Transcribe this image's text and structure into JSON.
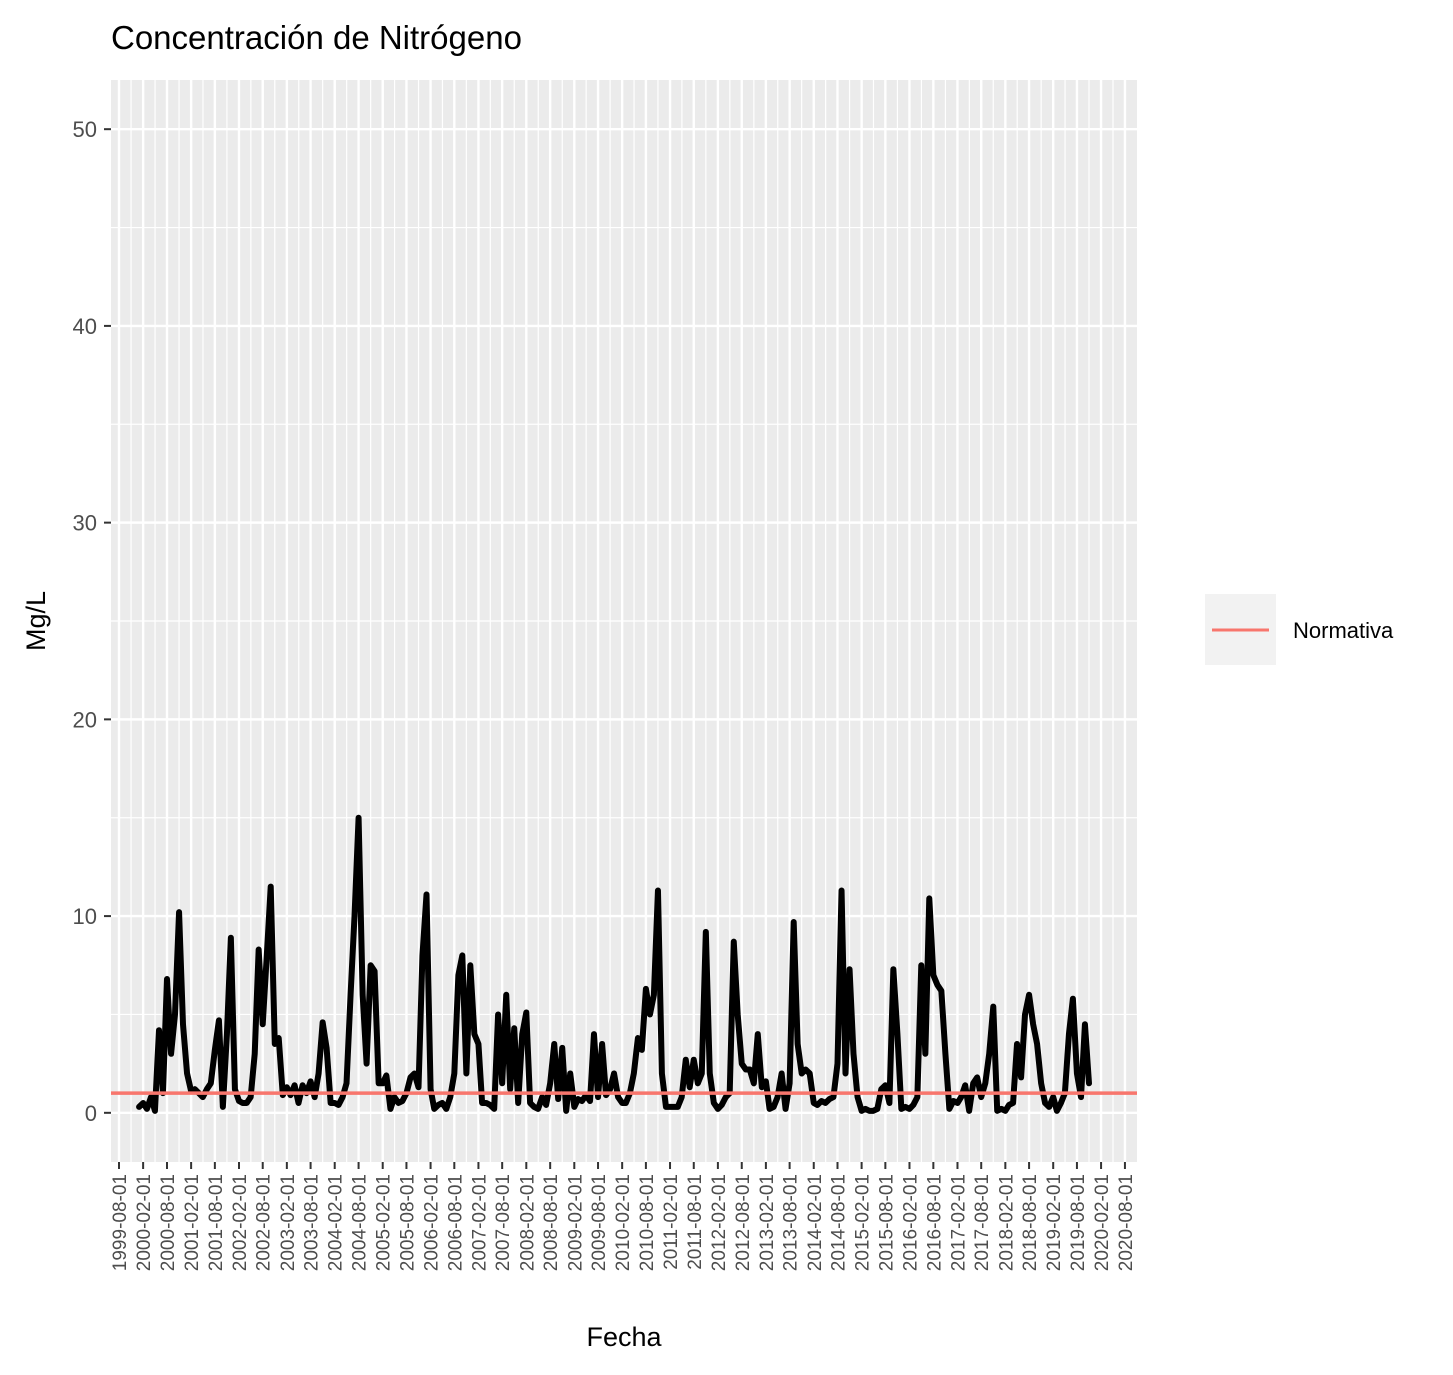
{
  "chart_data": {
    "type": "line",
    "title": "Concentración de Nitrógeno",
    "xlabel": "Fecha",
    "ylabel": "Mg/L",
    "ylim": [
      -2.5,
      52.5
    ],
    "xlim": [
      "1999-06-01",
      "2020-11-01"
    ],
    "yticks": [
      0,
      10,
      20,
      30,
      40,
      50
    ],
    "ytick_labels": [
      "0",
      "10",
      "20",
      "30",
      "40",
      "50"
    ],
    "xtick_labels": [
      "1999-08-01",
      "2000-02-01",
      "2000-08-01",
      "2001-02-01",
      "2001-08-01",
      "2002-02-01",
      "2002-08-01",
      "2003-02-01",
      "2003-08-01",
      "2004-02-01",
      "2004-08-01",
      "2005-02-01",
      "2005-08-01",
      "2006-02-01",
      "2006-08-01",
      "2007-02-01",
      "2007-08-01",
      "2008-02-01",
      "2008-08-01",
      "2009-02-01",
      "2009-08-01",
      "2010-02-01",
      "2010-08-01",
      "2011-02-01",
      "2011-08-01",
      "2012-02-01",
      "2012-08-01",
      "2013-02-01",
      "2013-08-01",
      "2014-02-01",
      "2014-08-01",
      "2015-02-01",
      "2015-08-01",
      "2016-02-01",
      "2016-08-01",
      "2017-02-01",
      "2017-08-01",
      "2018-02-01",
      "2018-08-01",
      "2019-02-01",
      "2019-08-01",
      "2020-02-01",
      "2020-08-01"
    ],
    "grid": true,
    "background": "#ebebeb",
    "legend_position": "right",
    "series": [
      {
        "color": "#000000",
        "points": [
          [
            "2000-01-01",
            0.3
          ],
          [
            "2000-02-01",
            0.5
          ],
          [
            "2000-03-01",
            0.2
          ],
          [
            "2000-04-01",
            0.8
          ],
          [
            "2000-05-01",
            0.1
          ],
          [
            "2000-06-01",
            4.2
          ],
          [
            "2000-07-01",
            1.0
          ],
          [
            "2000-08-01",
            6.8
          ],
          [
            "2000-09-01",
            3.0
          ],
          [
            "2000-10-01",
            5.0
          ],
          [
            "2000-11-01",
            10.2
          ],
          [
            "2000-12-01",
            4.5
          ],
          [
            "2001-01-01",
            2.0
          ],
          [
            "2001-02-01",
            1.1
          ],
          [
            "2001-03-01",
            1.2
          ],
          [
            "2001-04-01",
            1.0
          ],
          [
            "2001-05-01",
            0.8
          ],
          [
            "2001-06-01",
            1.2
          ],
          [
            "2001-07-01",
            1.5
          ],
          [
            "2001-08-01",
            3.2
          ],
          [
            "2001-09-01",
            4.7
          ],
          [
            "2001-10-01",
            0.3
          ],
          [
            "2001-11-01",
            4.0
          ],
          [
            "2001-12-01",
            8.9
          ],
          [
            "2002-01-01",
            1.2
          ],
          [
            "2002-02-01",
            0.6
          ],
          [
            "2002-03-01",
            0.5
          ],
          [
            "2002-04-01",
            0.5
          ],
          [
            "2002-05-01",
            0.8
          ],
          [
            "2002-06-01",
            3.0
          ],
          [
            "2002-07-01",
            8.3
          ],
          [
            "2002-08-01",
            4.5
          ],
          [
            "2002-09-01",
            8.0
          ],
          [
            "2002-10-01",
            11.5
          ],
          [
            "2002-11-01",
            3.5
          ],
          [
            "2002-12-01",
            3.8
          ],
          [
            "2003-01-01",
            0.9
          ],
          [
            "2003-02-01",
            1.3
          ],
          [
            "2003-03-01",
            0.9
          ],
          [
            "2003-04-01",
            1.4
          ],
          [
            "2003-05-01",
            0.5
          ],
          [
            "2003-06-01",
            1.4
          ],
          [
            "2003-07-01",
            1.0
          ],
          [
            "2003-08-01",
            1.6
          ],
          [
            "2003-09-01",
            0.8
          ],
          [
            "2003-10-01",
            2.0
          ],
          [
            "2003-11-01",
            4.6
          ],
          [
            "2003-12-01",
            3.3
          ],
          [
            "2004-01-01",
            0.5
          ],
          [
            "2004-02-01",
            0.5
          ],
          [
            "2004-03-01",
            0.4
          ],
          [
            "2004-04-01",
            0.8
          ],
          [
            "2004-05-01",
            1.5
          ],
          [
            "2004-06-01",
            6.0
          ],
          [
            "2004-07-01",
            10.0
          ],
          [
            "2004-08-01",
            15.0
          ],
          [
            "2004-09-01",
            6.0
          ],
          [
            "2004-10-01",
            2.5
          ],
          [
            "2004-11-01",
            7.5
          ],
          [
            "2004-12-01",
            7.2
          ],
          [
            "2005-01-01",
            1.5
          ],
          [
            "2005-02-01",
            1.5
          ],
          [
            "2005-03-01",
            1.9
          ],
          [
            "2005-04-01",
            0.2
          ],
          [
            "2005-05-01",
            0.8
          ],
          [
            "2005-06-01",
            0.5
          ],
          [
            "2005-07-01",
            0.6
          ],
          [
            "2005-08-01",
            1.0
          ],
          [
            "2005-09-01",
            1.8
          ],
          [
            "2005-10-01",
            2.0
          ],
          [
            "2005-11-01",
            1.3
          ],
          [
            "2005-12-01",
            8.0
          ],
          [
            "2006-01-01",
            11.1
          ],
          [
            "2006-02-01",
            1.2
          ],
          [
            "2006-03-01",
            0.2
          ],
          [
            "2006-04-01",
            0.4
          ],
          [
            "2006-05-01",
            0.5
          ],
          [
            "2006-06-01",
            0.2
          ],
          [
            "2006-07-01",
            0.8
          ],
          [
            "2006-08-01",
            2.0
          ],
          [
            "2006-09-01",
            7.0
          ],
          [
            "2006-10-01",
            8.0
          ],
          [
            "2006-11-01",
            2.0
          ],
          [
            "2006-12-01",
            7.5
          ],
          [
            "2007-01-01",
            4.0
          ],
          [
            "2007-02-01",
            3.5
          ],
          [
            "2007-03-01",
            0.5
          ],
          [
            "2007-04-01",
            0.5
          ],
          [
            "2007-05-01",
            0.4
          ],
          [
            "2007-06-01",
            0.2
          ],
          [
            "2007-07-01",
            5.0
          ],
          [
            "2007-08-01",
            1.5
          ],
          [
            "2007-09-01",
            6.0
          ],
          [
            "2007-10-01",
            1.2
          ],
          [
            "2007-11-01",
            4.3
          ],
          [
            "2007-12-01",
            0.5
          ],
          [
            "2008-01-01",
            4.0
          ],
          [
            "2008-02-01",
            5.1
          ],
          [
            "2008-03-01",
            0.5
          ],
          [
            "2008-04-01",
            0.3
          ],
          [
            "2008-05-01",
            0.2
          ],
          [
            "2008-06-01",
            0.8
          ],
          [
            "2008-07-01",
            0.4
          ],
          [
            "2008-08-01",
            1.5
          ],
          [
            "2008-09-01",
            3.5
          ],
          [
            "2008-10-01",
            0.7
          ],
          [
            "2008-11-01",
            3.3
          ],
          [
            "2008-12-01",
            0.1
          ],
          [
            "2009-01-01",
            2.0
          ],
          [
            "2009-02-01",
            0.3
          ],
          [
            "2009-03-01",
            0.7
          ],
          [
            "2009-04-01",
            0.6
          ],
          [
            "2009-05-01",
            0.9
          ],
          [
            "2009-06-01",
            0.6
          ],
          [
            "2009-07-01",
            4.0
          ],
          [
            "2009-08-01",
            0.8
          ],
          [
            "2009-09-01",
            3.5
          ],
          [
            "2009-10-01",
            0.9
          ],
          [
            "2009-11-01",
            1.2
          ],
          [
            "2009-12-01",
            2.0
          ],
          [
            "2010-01-01",
            0.8
          ],
          [
            "2010-02-01",
            0.5
          ],
          [
            "2010-03-01",
            0.5
          ],
          [
            "2010-04-01",
            1.0
          ],
          [
            "2010-05-01",
            2.0
          ],
          [
            "2010-06-01",
            3.8
          ],
          [
            "2010-07-01",
            3.2
          ],
          [
            "2010-08-01",
            6.3
          ],
          [
            "2010-09-01",
            5.0
          ],
          [
            "2010-10-01",
            6.0
          ],
          [
            "2010-11-01",
            11.3
          ],
          [
            "2010-12-01",
            2.0
          ],
          [
            "2011-01-01",
            0.3
          ],
          [
            "2011-02-01",
            0.3
          ],
          [
            "2011-03-01",
            0.3
          ],
          [
            "2011-04-01",
            0.3
          ],
          [
            "2011-05-01",
            0.8
          ],
          [
            "2011-06-01",
            2.7
          ],
          [
            "2011-07-01",
            1.3
          ],
          [
            "2011-08-01",
            2.7
          ],
          [
            "2011-09-01",
            1.5
          ],
          [
            "2011-10-01",
            2.0
          ],
          [
            "2011-11-01",
            9.2
          ],
          [
            "2011-12-01",
            2.0
          ],
          [
            "2012-01-01",
            0.5
          ],
          [
            "2012-02-01",
            0.2
          ],
          [
            "2012-03-01",
            0.4
          ],
          [
            "2012-04-01",
            0.8
          ],
          [
            "2012-05-01",
            1.0
          ],
          [
            "2012-06-01",
            8.7
          ],
          [
            "2012-07-01",
            5.0
          ],
          [
            "2012-08-01",
            2.5
          ],
          [
            "2012-09-01",
            2.2
          ],
          [
            "2012-10-01",
            2.2
          ],
          [
            "2012-11-01",
            1.5
          ],
          [
            "2012-12-01",
            4.0
          ],
          [
            "2013-01-01",
            1.3
          ],
          [
            "2013-02-01",
            1.6
          ],
          [
            "2013-03-01",
            0.2
          ],
          [
            "2013-04-01",
            0.3
          ],
          [
            "2013-05-01",
            0.8
          ],
          [
            "2013-06-01",
            2.0
          ],
          [
            "2013-07-01",
            0.2
          ],
          [
            "2013-08-01",
            1.5
          ],
          [
            "2013-09-01",
            9.7
          ],
          [
            "2013-10-01",
            3.5
          ],
          [
            "2013-11-01",
            2.0
          ],
          [
            "2013-12-01",
            2.2
          ],
          [
            "2014-01-01",
            2.0
          ],
          [
            "2014-02-01",
            0.5
          ],
          [
            "2014-03-01",
            0.4
          ],
          [
            "2014-04-01",
            0.6
          ],
          [
            "2014-05-01",
            0.5
          ],
          [
            "2014-06-01",
            0.7
          ],
          [
            "2014-07-01",
            0.8
          ],
          [
            "2014-08-01",
            2.5
          ],
          [
            "2014-09-01",
            11.3
          ],
          [
            "2014-10-01",
            2.0
          ],
          [
            "2014-11-01",
            7.3
          ],
          [
            "2014-12-01",
            3.0
          ],
          [
            "2015-01-01",
            0.8
          ],
          [
            "2015-02-01",
            0.1
          ],
          [
            "2015-03-01",
            0.2
          ],
          [
            "2015-04-01",
            0.1
          ],
          [
            "2015-05-01",
            0.1
          ],
          [
            "2015-06-01",
            0.2
          ],
          [
            "2015-07-01",
            1.2
          ],
          [
            "2015-08-01",
            1.4
          ],
          [
            "2015-09-01",
            0.5
          ],
          [
            "2015-10-01",
            7.3
          ],
          [
            "2015-11-01",
            4.0
          ],
          [
            "2015-12-01",
            0.2
          ],
          [
            "2016-01-01",
            0.3
          ],
          [
            "2016-02-01",
            0.2
          ],
          [
            "2016-03-01",
            0.4
          ],
          [
            "2016-04-01",
            0.8
          ],
          [
            "2016-05-01",
            7.5
          ],
          [
            "2016-06-01",
            3.0
          ],
          [
            "2016-07-01",
            10.9
          ],
          [
            "2016-08-01",
            7.0
          ],
          [
            "2016-09-01",
            6.5
          ],
          [
            "2016-10-01",
            6.2
          ],
          [
            "2016-11-01",
            3.0
          ],
          [
            "2016-12-01",
            0.2
          ],
          [
            "2017-01-01",
            0.6
          ],
          [
            "2017-02-01",
            0.5
          ],
          [
            "2017-03-01",
            0.8
          ],
          [
            "2017-04-01",
            1.4
          ],
          [
            "2017-05-01",
            0.1
          ],
          [
            "2017-06-01",
            1.5
          ],
          [
            "2017-07-01",
            1.8
          ],
          [
            "2017-08-01",
            0.8
          ],
          [
            "2017-09-01",
            1.5
          ],
          [
            "2017-10-01",
            3.0
          ],
          [
            "2017-11-01",
            5.4
          ],
          [
            "2017-12-01",
            0.1
          ],
          [
            "2018-01-01",
            0.2
          ],
          [
            "2018-02-01",
            0.1
          ],
          [
            "2018-03-01",
            0.4
          ],
          [
            "2018-04-01",
            0.5
          ],
          [
            "2018-05-01",
            3.5
          ],
          [
            "2018-06-01",
            1.8
          ],
          [
            "2018-07-01",
            5.0
          ],
          [
            "2018-08-01",
            6.0
          ],
          [
            "2018-09-01",
            4.5
          ],
          [
            "2018-10-01",
            3.5
          ],
          [
            "2018-11-01",
            1.5
          ],
          [
            "2018-12-01",
            0.5
          ],
          [
            "2019-01-01",
            0.3
          ],
          [
            "2019-02-01",
            0.8
          ],
          [
            "2019-03-01",
            0.1
          ],
          [
            "2019-04-01",
            0.5
          ],
          [
            "2019-05-01",
            1.0
          ],
          [
            "2019-06-01",
            4.0
          ],
          [
            "2019-07-01",
            5.8
          ],
          [
            "2019-08-01",
            2.0
          ],
          [
            "2019-09-01",
            0.8
          ],
          [
            "2019-10-01",
            4.5
          ],
          [
            "2019-11-01",
            1.5
          ]
        ]
      },
      {
        "name": "Normativa",
        "color": "#f8766d",
        "type": "hline",
        "y": 1
      }
    ]
  }
}
